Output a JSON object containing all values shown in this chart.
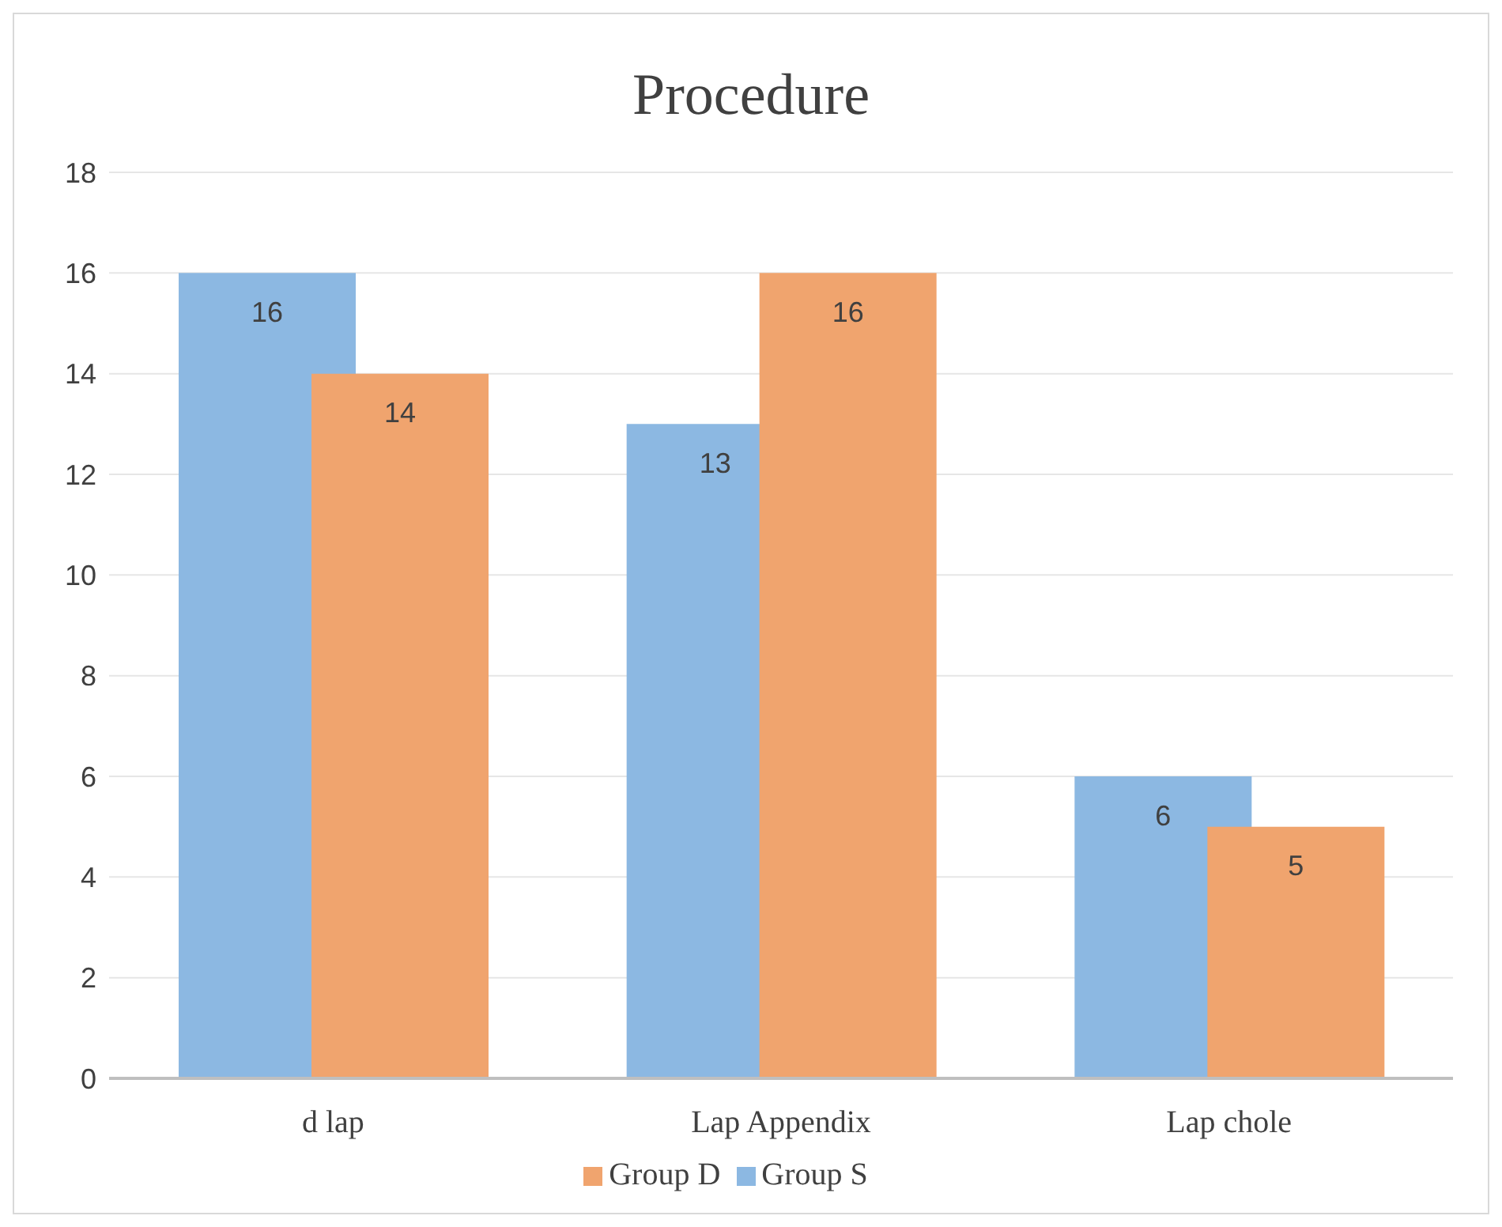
{
  "chart_data": {
    "type": "bar",
    "title": "Procedure",
    "categories": [
      "d lap",
      "Lap Appendix",
      "Lap chole"
    ],
    "series": [
      {
        "name": "Group S",
        "color": "#8cb8e2",
        "values": [
          16,
          13,
          6
        ]
      },
      {
        "name": "Group D",
        "color": "#f0a46e",
        "values": [
          14,
          16,
          5
        ]
      }
    ],
    "ylim": [
      0,
      18
    ],
    "yticks": [
      0,
      2,
      4,
      6,
      8,
      10,
      12,
      14,
      16,
      18
    ],
    "grid": "y",
    "legend": "bottom",
    "data_labels": true
  }
}
